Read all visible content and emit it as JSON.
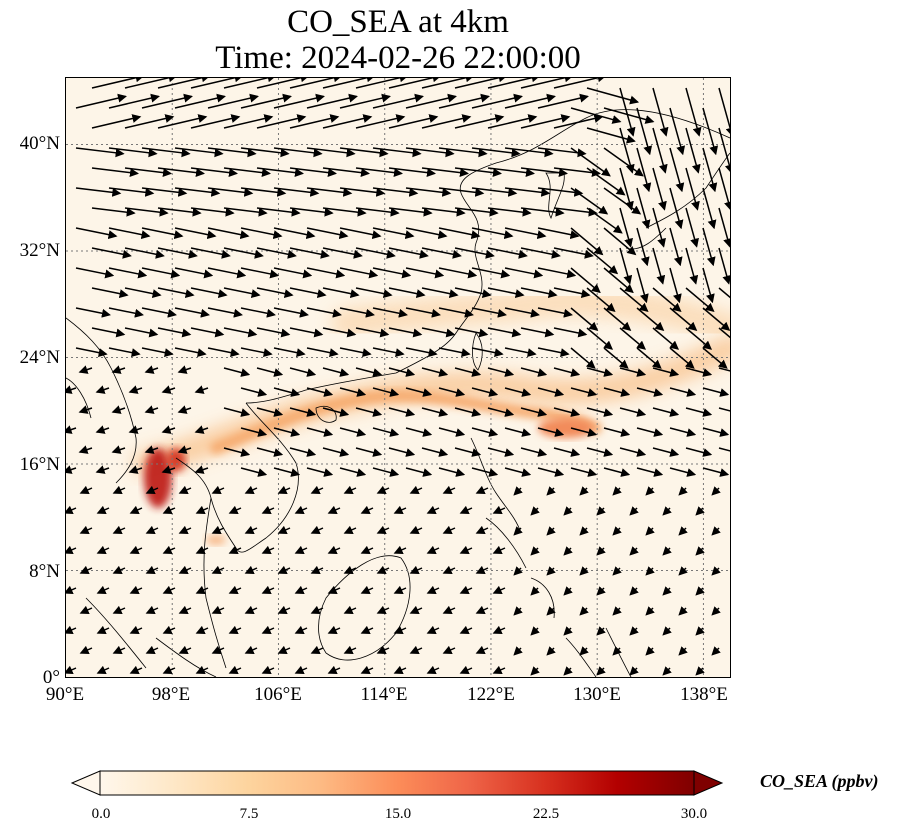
{
  "title": {
    "line1": "CO_SEA at 4km",
    "line2": "Time: 2024-02-26 22:00:00"
  },
  "map": {
    "lon_range": [
      90,
      140
    ],
    "lat_range": [
      0,
      45
    ],
    "lat_ticks": [
      {
        "value": 0,
        "label": "0°"
      },
      {
        "value": 8,
        "label": "8°N"
      },
      {
        "value": 16,
        "label": "16°N"
      },
      {
        "value": 24,
        "label": "24°N"
      },
      {
        "value": 32,
        "label": "32°N"
      },
      {
        "value": 40,
        "label": "40°N"
      }
    ],
    "lon_ticks": [
      {
        "value": 90,
        "label": "90°E"
      },
      {
        "value": 98,
        "label": "98°E"
      },
      {
        "value": 106,
        "label": "106°E"
      },
      {
        "value": 114,
        "label": "114°E"
      },
      {
        "value": 122,
        "label": "122°E"
      },
      {
        "value": 130,
        "label": "130°E"
      },
      {
        "value": 138,
        "label": "138°E"
      }
    ],
    "gridlines": true,
    "background_color": "#fdf5e8",
    "plume_color": "#f8c08a",
    "hotspot_color": "#c0231c"
  },
  "colorbar": {
    "label": "CO_SEA (ppbv)",
    "min": 0.0,
    "max": 30.0,
    "ticks": [
      "0.0",
      "7.5",
      "15.0",
      "22.5",
      "30.0"
    ],
    "colormap": [
      "#fff7ec",
      "#fee8c8",
      "#fdd49e",
      "#fdbb84",
      "#fc8d59",
      "#ef6548",
      "#d7301f",
      "#b30000",
      "#7f0000"
    ],
    "extend": "both"
  }
}
